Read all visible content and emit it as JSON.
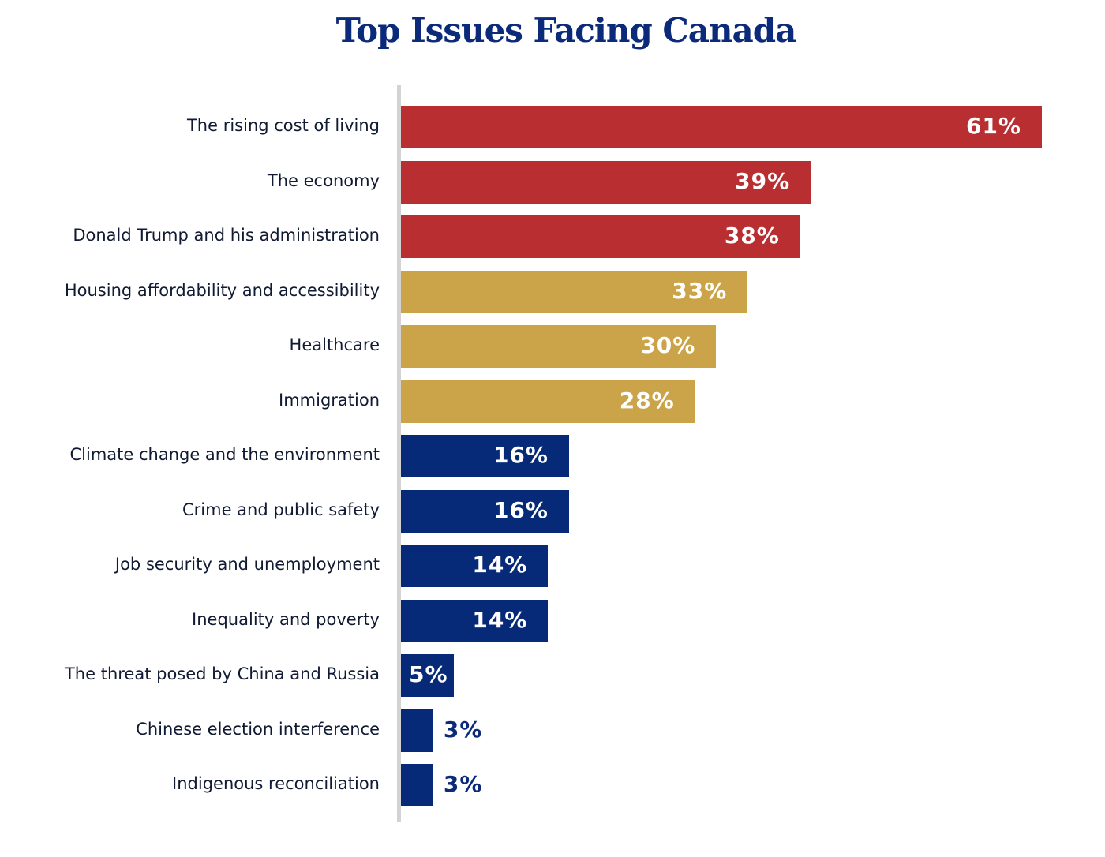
{
  "chart_data": {
    "type": "bar",
    "orientation": "horizontal",
    "title": "Top Issues Facing Canada",
    "xlabel": "",
    "ylabel": "",
    "xlim": [
      0,
      61
    ],
    "grid": false,
    "categories": [
      "The rising cost of living",
      "The economy",
      "Donald Trump and his administration",
      "Housing affordability and accessibility",
      "Healthcare",
      "Immigration",
      "Climate change and the environment",
      "Crime and public safety",
      "Job security and unemployment",
      "Inequality and poverty",
      "The threat posed by China and Russia",
      "Chinese election interference",
      "Indigenous reconciliation"
    ],
    "values": [
      61,
      39,
      38,
      33,
      30,
      28,
      16,
      16,
      14,
      14,
      5,
      3,
      3
    ],
    "labels": [
      "61%",
      "39%",
      "38%",
      "33%",
      "30%",
      "28%",
      "16%",
      "16%",
      "14%",
      "14%",
      "5%",
      "3%",
      "3%"
    ],
    "bar_colors": [
      "#B92E31",
      "#B92E31",
      "#B92E31",
      "#CBA44A",
      "#CBA44A",
      "#CBA44A",
      "#072A78",
      "#072A78",
      "#072A78",
      "#072A78",
      "#072A78",
      "#072A78",
      "#072A78"
    ]
  }
}
